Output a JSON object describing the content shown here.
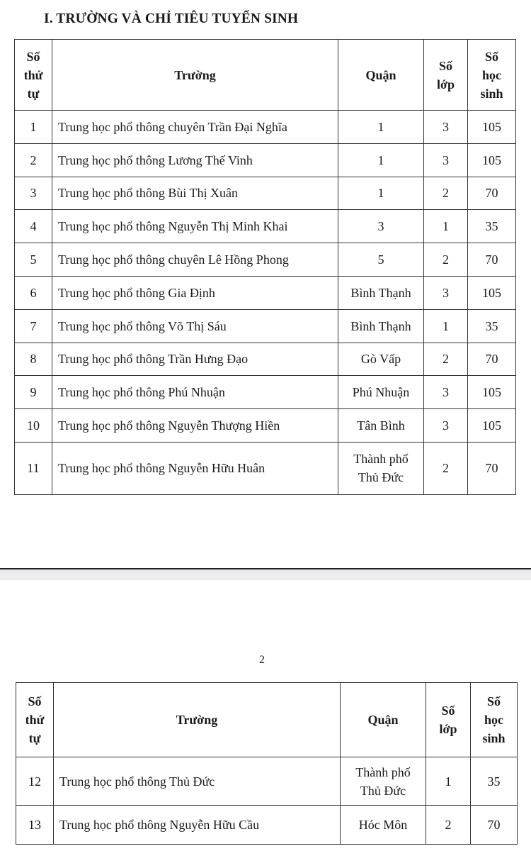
{
  "page1": {
    "section_title": "I. TRƯỜNG VÀ CHỈ TIÊU TUYỂN SINH",
    "table": {
      "headers": [
        "Số thứ tự",
        "Trường",
        "Quận",
        "Số lớp",
        "Số học sinh"
      ],
      "rows": [
        {
          "stt": "1",
          "truong": "Trung học phổ thông chuyên Trần Đại Nghĩa",
          "quan": "1",
          "so_lop": "3",
          "so_hoc_sinh": "105"
        },
        {
          "stt": "2",
          "truong": "Trung học phổ thông Lương Thế Vinh",
          "quan": "1",
          "so_lop": "3",
          "so_hoc_sinh": "105"
        },
        {
          "stt": "3",
          "truong": "Trung học phổ thông Bùi Thị Xuân",
          "quan": "1",
          "so_lop": "2",
          "so_hoc_sinh": "70"
        },
        {
          "stt": "4",
          "truong": "Trung học phổ thông Nguyễn Thị Minh Khai",
          "quan": "3",
          "so_lop": "1",
          "so_hoc_sinh": "35"
        },
        {
          "stt": "5",
          "truong": "Trung học phổ thông chuyên Lê Hồng Phong",
          "quan": "5",
          "so_lop": "2",
          "so_hoc_sinh": "70"
        },
        {
          "stt": "6",
          "truong": "Trung học phổ thông Gia Định",
          "quan": "Bình Thạnh",
          "so_lop": "3",
          "so_hoc_sinh": "105"
        },
        {
          "stt": "7",
          "truong": "Trung học phổ thông Võ Thị Sáu",
          "quan": "Bình Thạnh",
          "so_lop": "1",
          "so_hoc_sinh": "35"
        },
        {
          "stt": "8",
          "truong": "Trung học phổ thông Trần Hưng Đạo",
          "quan": "Gò Vấp",
          "so_lop": "2",
          "so_hoc_sinh": "70"
        },
        {
          "stt": "9",
          "truong": "Trung học phổ thông Phú Nhuận",
          "quan": "Phú Nhuận",
          "so_lop": "3",
          "so_hoc_sinh": "105"
        },
        {
          "stt": "10",
          "truong": "Trung học phổ thông Nguyễn Thượng Hiền",
          "quan": "Tân Bình",
          "so_lop": "3",
          "so_hoc_sinh": "105"
        },
        {
          "stt": "11",
          "truong": "Trung học phổ thông Nguyễn Hữu Huân",
          "quan": "Thành phố Thủ Đức",
          "so_lop": "2",
          "so_hoc_sinh": "70"
        }
      ]
    }
  },
  "page2": {
    "page_number": "2",
    "table": {
      "headers": [
        "Số thứ tự",
        "Trường",
        "Quận",
        "Số lớp",
        "Số học sinh"
      ],
      "rows": [
        {
          "stt": "12",
          "truong": "Trung học phổ thông Thủ Đức",
          "quan": "Thành phố Thủ Đức",
          "so_lop": "1",
          "so_hoc_sinh": "35"
        },
        {
          "stt": "13",
          "truong": "Trung học phổ thông Nguyễn Hữu Cầu",
          "quan": "Hóc Môn",
          "so_lop": "2",
          "so_hoc_sinh": "70"
        }
      ]
    }
  }
}
